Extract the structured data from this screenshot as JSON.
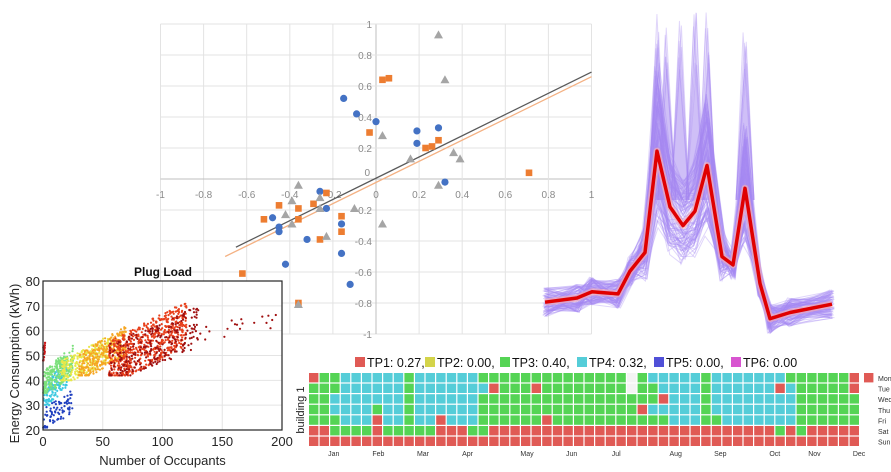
{
  "chart_data": [
    {
      "id": "correlation-scatter",
      "type": "scatter",
      "title": "",
      "xlabel": "",
      "ylabel": "",
      "xlim": [
        -1,
        1
      ],
      "ylim": [
        -1,
        1
      ],
      "grid": true,
      "x_ticks": [
        "-1",
        "-0.8",
        "-0.6",
        "-0.4",
        "-0.2",
        "0",
        "0.2",
        "0.4",
        "0.6",
        "0.8",
        "1"
      ],
      "y_ticks": [
        "1",
        "0.8",
        "0.6",
        "0.4",
        "0.2",
        "0",
        "-0.2",
        "-0.4",
        "-0.6",
        "-0.8",
        "-1"
      ],
      "series": [
        {
          "name": "blue-circles",
          "marker": "circle",
          "color": "#4472c4",
          "points": [
            [
              -0.15,
              0.52
            ],
            [
              -0.09,
              0.42
            ],
            [
              0.0,
              0.37
            ],
            [
              0.19,
              0.31
            ],
            [
              0.19,
              0.23
            ],
            [
              0.29,
              0.33
            ],
            [
              0.32,
              -0.02
            ],
            [
              -0.26,
              -0.08
            ],
            [
              -0.23,
              -0.19
            ],
            [
              -0.48,
              -0.25
            ],
            [
              -0.45,
              -0.31
            ],
            [
              -0.45,
              -0.34
            ],
            [
              -0.16,
              -0.29
            ],
            [
              -0.32,
              -0.39
            ],
            [
              -0.16,
              -0.48
            ],
            [
              -0.42,
              -0.55
            ],
            [
              -0.12,
              -0.68
            ],
            [
              -0.65,
              -0.7
            ]
          ]
        },
        {
          "name": "orange-squares",
          "marker": "square",
          "color": "#ed7d31",
          "points": [
            [
              0.03,
              0.64
            ],
            [
              0.06,
              0.65
            ],
            [
              -0.03,
              0.3
            ],
            [
              0.23,
              0.2
            ],
            [
              0.26,
              0.21
            ],
            [
              0.29,
              0.25
            ],
            [
              0.71,
              0.04
            ],
            [
              -0.23,
              -0.09
            ],
            [
              -0.29,
              -0.16
            ],
            [
              -0.45,
              -0.17
            ],
            [
              -0.36,
              -0.19
            ],
            [
              -0.52,
              -0.26
            ],
            [
              -0.36,
              -0.26
            ],
            [
              -0.16,
              -0.24
            ],
            [
              -0.16,
              -0.34
            ],
            [
              -0.26,
              -0.39
            ],
            [
              -0.62,
              -0.61
            ],
            [
              -0.36,
              -0.8
            ]
          ]
        },
        {
          "name": "gray-triangles",
          "marker": "triangle",
          "color": "#a5a5a5",
          "points": [
            [
              0.29,
              0.93
            ],
            [
              0.32,
              0.64
            ],
            [
              0.03,
              0.28
            ],
            [
              0.16,
              0.13
            ],
            [
              0.36,
              0.17
            ],
            [
              0.39,
              0.13
            ],
            [
              0.29,
              -0.04
            ],
            [
              -0.36,
              -0.04
            ],
            [
              -0.39,
              -0.14
            ],
            [
              -0.26,
              -0.12
            ],
            [
              -0.26,
              -0.19
            ],
            [
              -0.42,
              -0.23
            ],
            [
              -0.39,
              -0.29
            ],
            [
              -0.23,
              -0.37
            ],
            [
              -0.1,
              -0.19
            ],
            [
              0.03,
              -0.29
            ],
            [
              -0.72,
              -0.69
            ],
            [
              -0.36,
              -0.81
            ]
          ]
        }
      ],
      "trendlines": [
        {
          "name": "trend-blue",
          "color": "#595959",
          "from": [
            -0.65,
            -0.44
          ],
          "to": [
            1.0,
            0.69
          ]
        },
        {
          "name": "trend-orange",
          "color": "#f4b183",
          "from": [
            -0.7,
            -0.5
          ],
          "to": [
            1.0,
            0.66
          ]
        }
      ]
    },
    {
      "id": "plug-load",
      "type": "scatter",
      "title": "Plug Load",
      "xlabel": "Number of Occupants",
      "ylabel": "Energy Consumption (kWh)",
      "xlim": [
        0,
        200
      ],
      "ylim": [
        20,
        80
      ],
      "grid": true,
      "x_ticks": [
        "0",
        "50",
        "100",
        "150",
        "200"
      ],
      "y_ticks": [
        "20",
        "30",
        "40",
        "50",
        "60",
        "70",
        "80"
      ],
      "colormap": "jet (color encodes density/time)",
      "description": "Dense point cloud rising from ~35 kWh at 0 occupants to ~58 kWh around 90-100 occupants; sparse points up to ~190 occupants near 60-67 kWh",
      "clusters": [
        {
          "color": "#1f3fbf",
          "x": [
            0,
            25
          ],
          "y": [
            21,
            37
          ],
          "n": 80
        },
        {
          "color": "#3cc8e0",
          "x": [
            0,
            20
          ],
          "y": [
            30,
            48
          ],
          "n": 140
        },
        {
          "color": "#7be07b",
          "x": [
            0,
            25
          ],
          "y": [
            35,
            54
          ],
          "n": 220
        },
        {
          "color": "#e8e84a",
          "x": [
            15,
            55
          ],
          "y": [
            40,
            58
          ],
          "n": 260
        },
        {
          "color": "#f5a623",
          "x": [
            30,
            70
          ],
          "y": [
            42,
            62
          ],
          "n": 300
        },
        {
          "color": "#e8401c",
          "x": [
            55,
            120
          ],
          "y": [
            42,
            72
          ],
          "n": 600
        },
        {
          "color": "#a01010",
          "x": [
            55,
            130
          ],
          "y": [
            42,
            70
          ],
          "n": 260
        },
        {
          "color": "#a01010",
          "x": [
            120,
            195
          ],
          "y": [
            55,
            68
          ],
          "n": 20
        },
        {
          "color": "#c81818",
          "x": [
            0,
            2
          ],
          "y": [
            48,
            58
          ],
          "n": 25
        }
      ]
    },
    {
      "id": "daily-profile",
      "type": "line",
      "title": "",
      "xlabel": "",
      "ylabel": "",
      "description": "Many daily load profiles (light purple) with mean profile (red) showing three peaks",
      "x": [
        0,
        1,
        2,
        3,
        4,
        5,
        6,
        7,
        8,
        9,
        10,
        11,
        12,
        13,
        14,
        15,
        16,
        17
      ],
      "series": [
        {
          "name": "mean-profile",
          "color": "#e00000",
          "values": [
            0.12,
            0.14,
            0.17,
            0.16,
            0.27,
            0.36,
            0.85,
            0.58,
            0.49,
            0.56,
            0.78,
            0.34,
            0.3,
            0.67,
            0.21,
            0.04,
            0.07,
            0.11
          ]
        },
        {
          "name": "individual-profiles",
          "color": "#9b7bf0",
          "values": []
        }
      ],
      "ylim": [
        0,
        1.3
      ]
    },
    {
      "id": "weekday-heatmap",
      "type": "heatmap",
      "title": "",
      "ylabel": "building 1",
      "legend": [
        {
          "label": "TP1: 0.27,",
          "color": "#e05a55"
        },
        {
          "label": "TP2: 0.00,",
          "color": "#d4d44a"
        },
        {
          "label": "TP3: 0.40,",
          "color": "#55d455"
        },
        {
          "label": "TP4: 0.32,",
          "color": "#55cdd8"
        },
        {
          "label": "TP5: 0.00,",
          "color": "#5050d8"
        },
        {
          "label": "TP6: 0.00",
          "color": "#d855d0"
        }
      ],
      "legend_position": "top",
      "days": [
        "Mon",
        "Tue",
        "Wed",
        "Thu",
        "Fri",
        "Sat",
        "Sun"
      ],
      "months": [
        "Jan",
        "Feb",
        "Mar",
        "Apr",
        "May",
        "Jun",
        "Jul",
        "Aug",
        "Sep",
        "Oct",
        "Nov",
        "Dec"
      ],
      "month_week_index": [
        2.5,
        7,
        11.5,
        16,
        22,
        26.5,
        31,
        37,
        41.5,
        47,
        51,
        55.5
      ],
      "code_legend": {
        "R": "TP1",
        "G": "TP3",
        "C": "TP4",
        "W": "none"
      },
      "rows": [
        "RGGCCCCCCGCCCCCCGGGGGGGGGGGGGGWGCCCCCGCCCCCCCGGGGGGR",
        "GGGCCCCCCGCCCCCCCRGGGRGGGGGGGGWGGCCCCGCCCCCCRCGGGGGR",
        "GGCCCCCCCGCCCCCCGGGGGGGGGGGGGGGGGRCCCGCCCCCCCCGGGGGG",
        "GGCCCCGCCGCCCCCCGGGGGGGGGGGGGGGRCCCCCGCCCCCCCCGGGGGG",
        "GGGCCCRCCGCCRCCCGGGGGGRGGGGGGGGGGGCCCGGCCCCCCCGGGGGG",
        "RRGGGGRGGGGGRRRGGRRRRRRRRRRRRRRRRRRRRRRRRRRRGRGRRRRRR",
        "RRRRRRRRRRRRRRRRRRRRRRRRRRRRRRRRRRRRRRRRRRRRRRRRRRRR"
      ],
      "extra_cells": [
        {
          "day": "Mon",
          "code": "R"
        }
      ]
    }
  ]
}
